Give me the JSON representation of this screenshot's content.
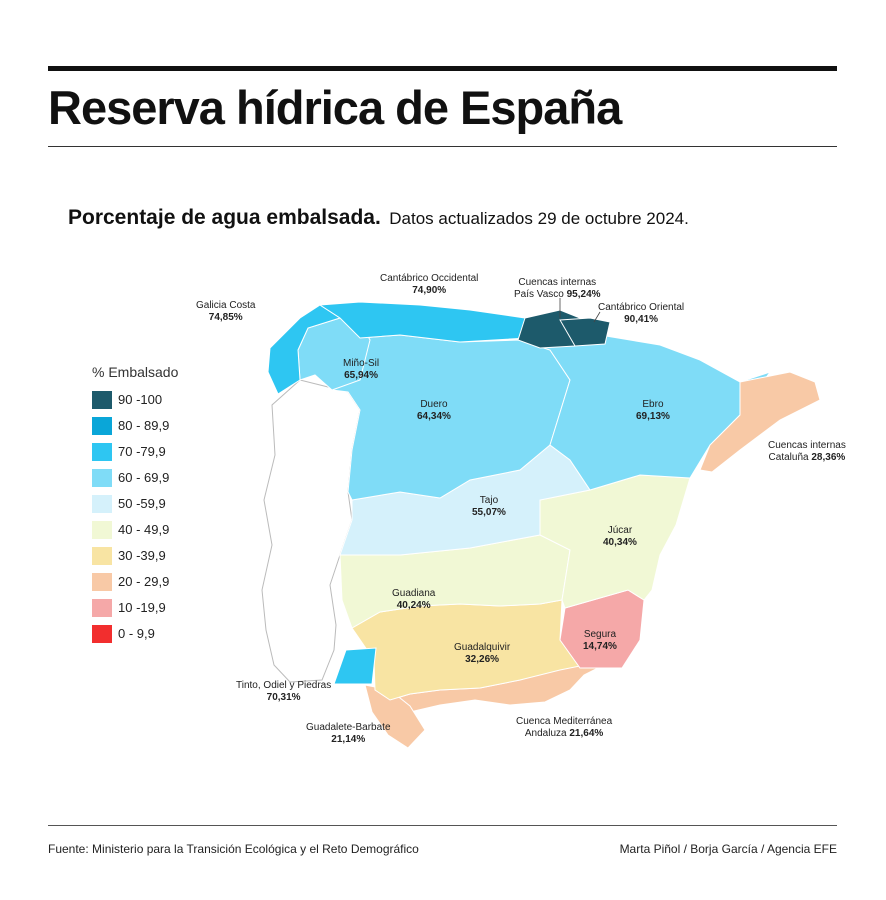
{
  "header": {
    "title": "Reserva hídrica de España",
    "subtitle_strong": "Porcentaje de agua embalsada.",
    "subtitle_date": "Datos actualizados 29 de octubre 2024."
  },
  "legend": {
    "title": "% Embalsado",
    "items": [
      {
        "label": "90 -100",
        "color": "#1d5a6b"
      },
      {
        "label": "80 - 89,9",
        "color": "#0aa6d8"
      },
      {
        "label": "70 -79,9",
        "color": "#2ec6f2"
      },
      {
        "label": "60 - 69,9",
        "color": "#7fdcf7"
      },
      {
        "label": "50 -59,9",
        "color": "#d5f1fb"
      },
      {
        "label": "40 - 49,9",
        "color": "#f1f8d5"
      },
      {
        "label": "30 -39,9",
        "color": "#f8e4a3"
      },
      {
        "label": "20 - 29,9",
        "color": "#f8c9a6"
      },
      {
        "label": "10 -19,9",
        "color": "#f5a8a8"
      },
      {
        "label": "0 - 9,9",
        "color": "#f22e2e"
      }
    ]
  },
  "basins": {
    "galicia": {
      "name": "Galicia Costa",
      "value": "74,85%"
    },
    "cantabrico_occ": {
      "name": "Cantábrico Occidental",
      "value": "74,90%"
    },
    "pais_vasco": {
      "name1": "Cuencas internas",
      "name2": "País Vasco",
      "value": "95,24%"
    },
    "cantabrico_or": {
      "name": "Cantábrico Oriental",
      "value": "90,41%"
    },
    "mino_sil": {
      "name": "Miño-Sil",
      "value": "65,94%"
    },
    "duero": {
      "name": "Duero",
      "value": "64,34%"
    },
    "ebro": {
      "name": "Ebro",
      "value": "69,13%"
    },
    "cataluna": {
      "name1": "Cuencas internas",
      "name2": "Cataluña",
      "value": "28,36%"
    },
    "tajo": {
      "name": "Tajo",
      "value": "55,07%"
    },
    "jucar": {
      "name": "Júcar",
      "value": "40,34%"
    },
    "guadiana": {
      "name": "Guadiana",
      "value": "40,24%"
    },
    "guadalquivir": {
      "name": "Guadalquivir",
      "value": "32,26%"
    },
    "segura": {
      "name": "Segura",
      "value": "14,74%"
    },
    "tinto": {
      "name": "Tinto, Odiel y Piedras",
      "value": "70,31%"
    },
    "guadalete": {
      "name": "Guadalete-Barbate",
      "value": "21,14%"
    },
    "mediterranea": {
      "name1": "Cuenca Mediterránea",
      "name2": "Andaluza",
      "value": "21,64%"
    }
  },
  "footer": {
    "source": "Fuente: Ministerio para la Transición Ecológica y el Reto Demográfico",
    "credit": "Marta Piñol / Borja García / Agencia EFE"
  }
}
